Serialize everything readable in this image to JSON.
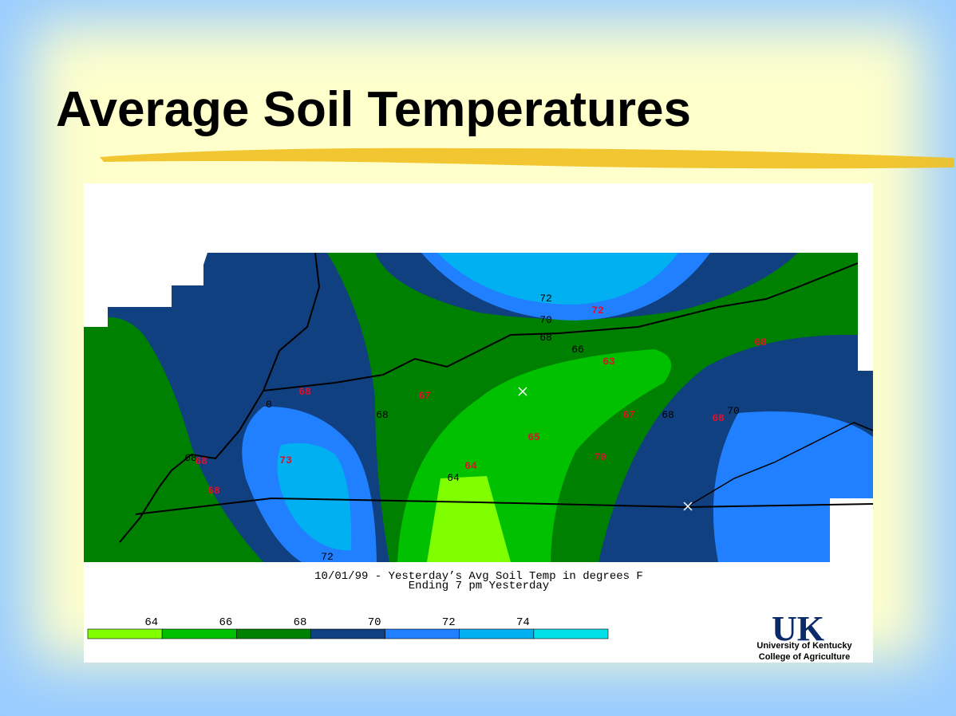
{
  "title": "Average Soil Temperatures",
  "map": {
    "contour_labels": [
      "72",
      "70",
      "68",
      "66",
      "0",
      "68",
      "68",
      "70",
      "68",
      "64",
      "72"
    ],
    "station_values": [
      "72",
      "68",
      "63",
      "68",
      "67",
      "67",
      "65",
      "68",
      "70",
      "73",
      "64",
      "68",
      "68"
    ],
    "caption": [
      "10/01/99 - Yesterday’s Avg Soil Temp in degrees F",
      "Ending 7 pm Yesterday"
    ],
    "legend": {
      "ticks": [
        "64",
        "66",
        "68",
        "70",
        "72",
        "74"
      ],
      "colors": [
        "#80ff00",
        "#00c000",
        "#008000",
        "#104080",
        "#2080ff",
        "#00b0f0",
        "#00e0e8"
      ]
    }
  },
  "logo": {
    "mark": "UK",
    "lines": [
      "University of Kentucky",
      "College of Agriculture"
    ]
  }
}
